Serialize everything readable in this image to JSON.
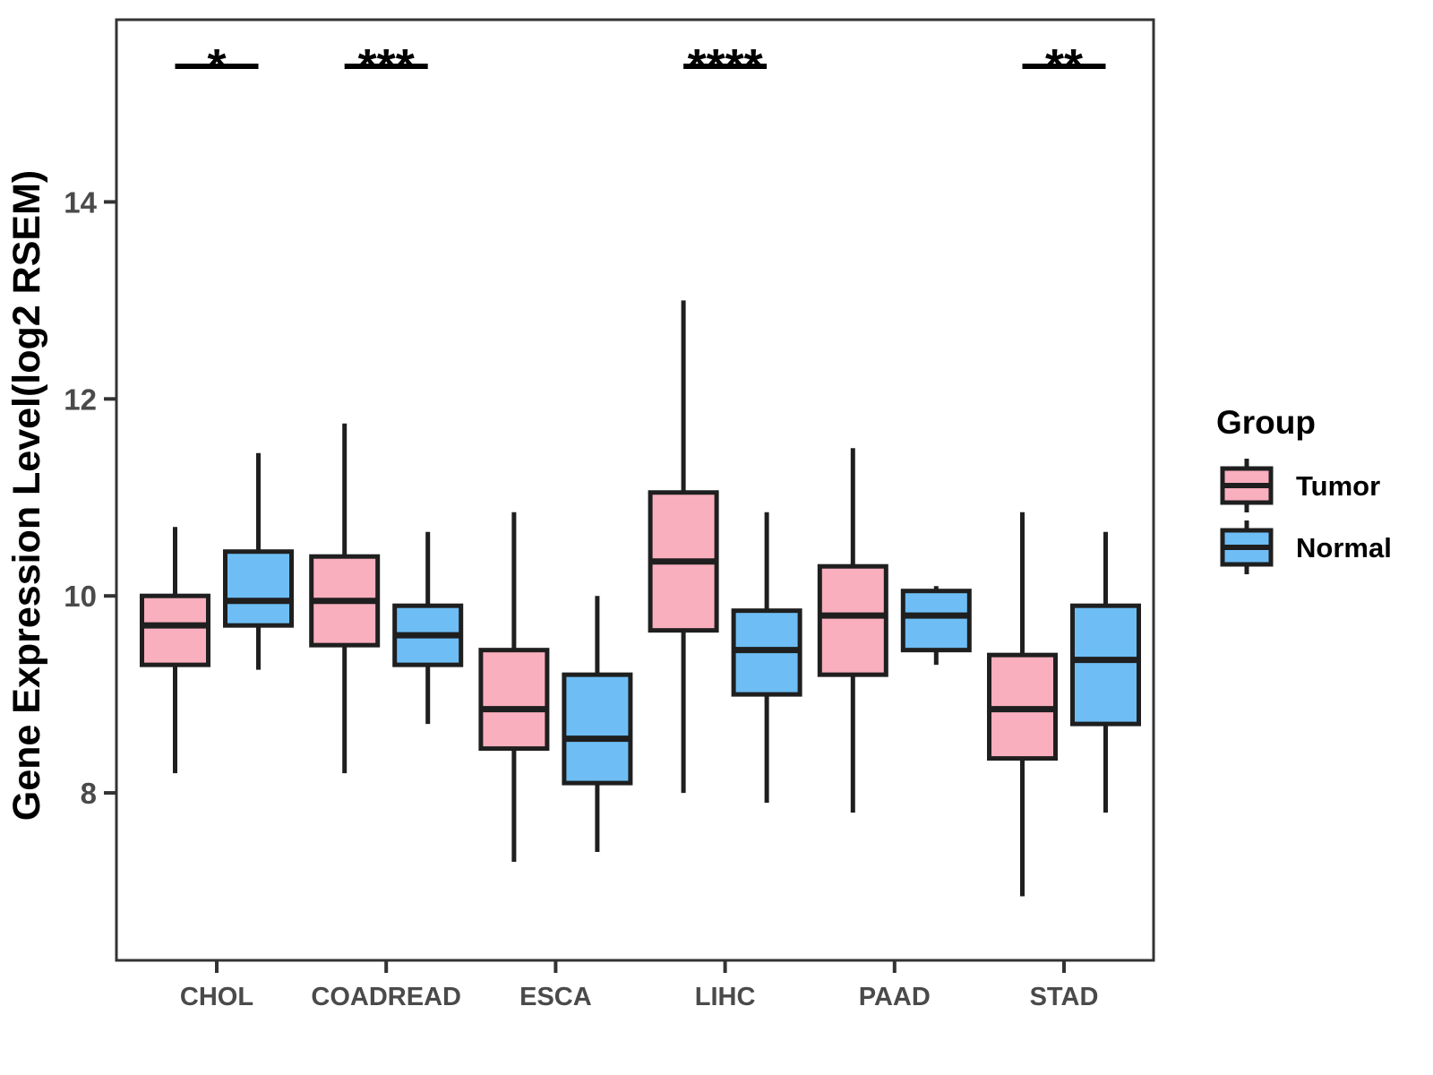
{
  "chart_data": {
    "type": "grouped_boxplot",
    "title": "",
    "xlabel": "",
    "ylabel": "Gene Expression Level(log2 RSEM)",
    "categories": [
      "CHOL",
      "COADREAD",
      "ESCA",
      "LIHC",
      "PAAD",
      "STAD"
    ],
    "y_ticks": [
      8,
      10,
      12,
      14
    ],
    "ylim": [
      6.3,
      15.85
    ],
    "grid": false,
    "legend_position": "right",
    "colors": {
      "tumor_fill": "#FAAFBE",
      "normal_fill": "#6EBEF5",
      "box_stroke": "#1f1f1f",
      "axis_stroke": "#333333",
      "tick_text": "#4a4a4a",
      "annotation": "#000000"
    },
    "series": [
      {
        "name": "Tumor",
        "color": "#FAAFBE",
        "boxes": [
          {
            "low": 8.2,
            "q1": 9.3,
            "median": 9.7,
            "q3": 10.0,
            "high": 10.7
          },
          {
            "low": 8.2,
            "q1": 9.5,
            "median": 9.95,
            "q3": 10.4,
            "high": 11.75
          },
          {
            "low": 7.3,
            "q1": 8.45,
            "median": 8.85,
            "q3": 9.45,
            "high": 10.85
          },
          {
            "low": 8.0,
            "q1": 9.65,
            "median": 10.35,
            "q3": 11.05,
            "high": 13.0
          },
          {
            "low": 7.8,
            "q1": 9.2,
            "median": 9.8,
            "q3": 10.3,
            "high": 11.5
          },
          {
            "low": 6.95,
            "q1": 8.35,
            "median": 8.85,
            "q3": 9.4,
            "high": 10.85
          }
        ]
      },
      {
        "name": "Normal",
        "color": "#6EBEF5",
        "boxes": [
          {
            "low": 9.25,
            "q1": 9.7,
            "median": 9.95,
            "q3": 10.45,
            "high": 11.45
          },
          {
            "low": 8.7,
            "q1": 9.3,
            "median": 9.6,
            "q3": 9.9,
            "high": 10.65
          },
          {
            "low": 7.4,
            "q1": 8.1,
            "median": 8.55,
            "q3": 9.2,
            "high": 10.0
          },
          {
            "low": 7.9,
            "q1": 9.0,
            "median": 9.45,
            "q3": 9.85,
            "high": 10.85
          },
          {
            "low": 9.3,
            "q1": 9.45,
            "median": 9.8,
            "q3": 10.05,
            "high": 10.1
          },
          {
            "low": 7.8,
            "q1": 8.7,
            "median": 9.35,
            "q3": 9.9,
            "high": 10.65
          }
        ]
      }
    ],
    "significance": [
      {
        "category": "CHOL",
        "label": "*"
      },
      {
        "category": "COADREAD",
        "label": "***"
      },
      {
        "category": "LIHC",
        "label": "****"
      },
      {
        "category": "STAD",
        "label": "**"
      }
    ],
    "legend": {
      "title": "Group",
      "entries": [
        "Tumor",
        "Normal"
      ]
    }
  }
}
